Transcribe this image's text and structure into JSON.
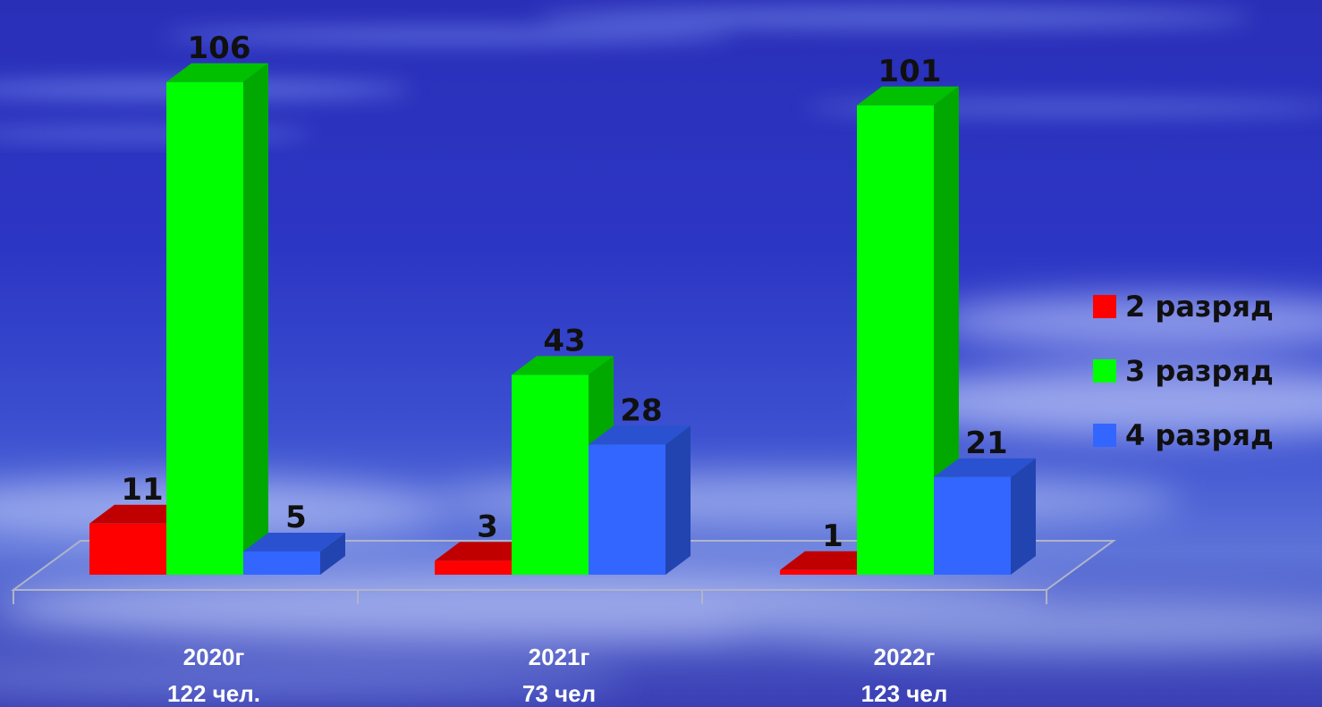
{
  "chart_data": {
    "type": "bar",
    "categories": [
      "2020г",
      "2021г",
      "2022г"
    ],
    "category_sublabels": [
      "122 чел.",
      "73 чел",
      "123 чел"
    ],
    "series": [
      {
        "name": "2 разряд",
        "values": [
          11,
          3,
          1
        ],
        "color": "#ff0000",
        "top_color": "#c00000",
        "side_color": "#a00000"
      },
      {
        "name": "3 разряд",
        "values": [
          106,
          43,
          101
        ],
        "color": "#00ff00",
        "top_color": "#00c000",
        "side_color": "#00a800"
      },
      {
        "name": "4 разряд",
        "values": [
          5,
          28,
          21
        ],
        "color": "#3366ff",
        "top_color": "#2a52d0",
        "side_color": "#2244b0"
      }
    ],
    "ylim": [
      0,
      110
    ],
    "grid": false,
    "legend_position": "right",
    "title": "",
    "xlabel": "",
    "ylabel": ""
  }
}
